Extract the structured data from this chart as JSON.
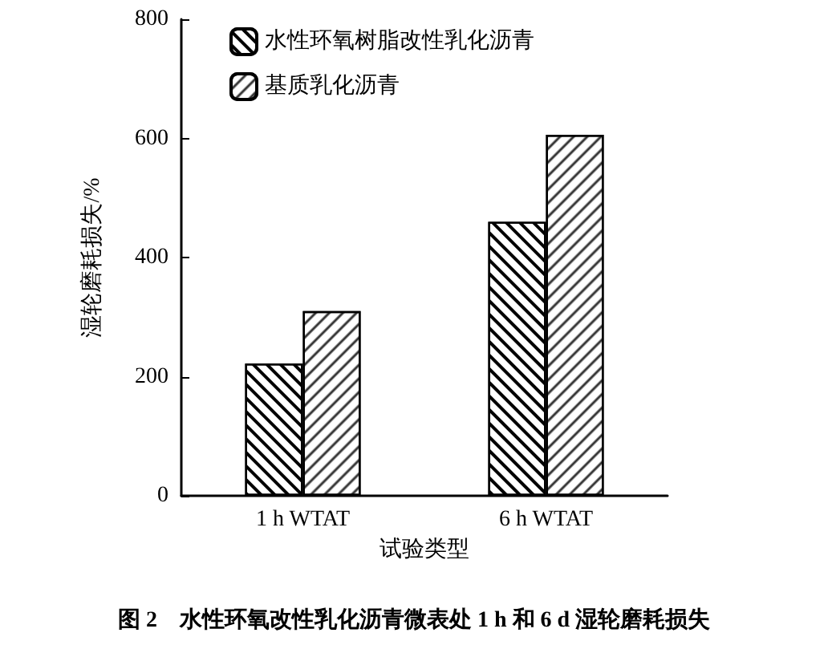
{
  "chart_data": {
    "type": "bar",
    "xlabel": "试验类型",
    "ylabel": "湿轮磨耗损失/%",
    "categories": [
      "1 h WTAT",
      "6 h WTAT"
    ],
    "series": [
      {
        "name": "水性环氧树脂改性乳化沥青",
        "color": "#ffffff",
        "values": [
          222,
          460
        ]
      },
      {
        "name": "基质乳化沥青",
        "color": "#ffffff",
        "values": [
          310,
          606
        ]
      }
    ],
    "ylim": [
      0,
      800
    ],
    "yticks": [
      0,
      200,
      400,
      600,
      800
    ],
    "grid": false,
    "legend": "top left",
    "annotations": [
      "图 2　水性环氧改性乳化沥青微表处 1 h 和 6 d 湿轮磨耗损失"
    ]
  }
}
